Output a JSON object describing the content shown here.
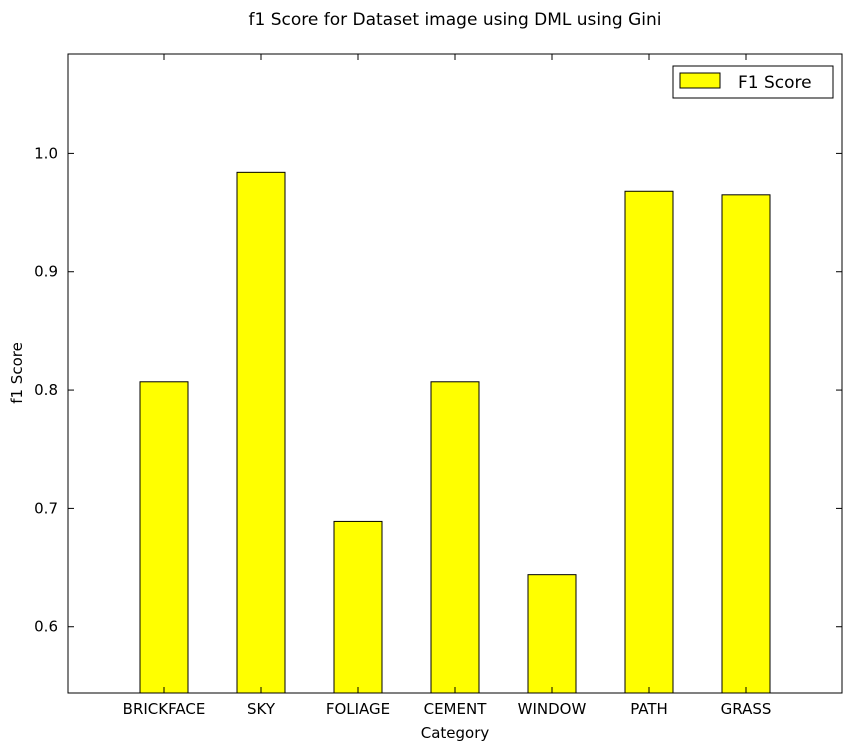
{
  "chart_data": {
    "type": "bar",
    "title": "f1 Score for Dataset image using DML using Gini",
    "xlabel": "Category",
    "ylabel": "f1 Score",
    "categories": [
      "BRICKFACE",
      "SKY",
      "FOLIAGE",
      "CEMENT",
      "WINDOW",
      "PATH",
      "GRASS"
    ],
    "series": [
      {
        "name": "F1 Score",
        "values": [
          0.807,
          0.984,
          0.689,
          0.807,
          0.644,
          0.968,
          0.965
        ],
        "color": "#ffff00"
      }
    ],
    "ylim": [
      0.544,
      1.084
    ],
    "yticks": [
      "0.6",
      "0.7",
      "0.8",
      "0.9",
      "1.0"
    ],
    "legend_position": "top-right",
    "grid": false
  }
}
